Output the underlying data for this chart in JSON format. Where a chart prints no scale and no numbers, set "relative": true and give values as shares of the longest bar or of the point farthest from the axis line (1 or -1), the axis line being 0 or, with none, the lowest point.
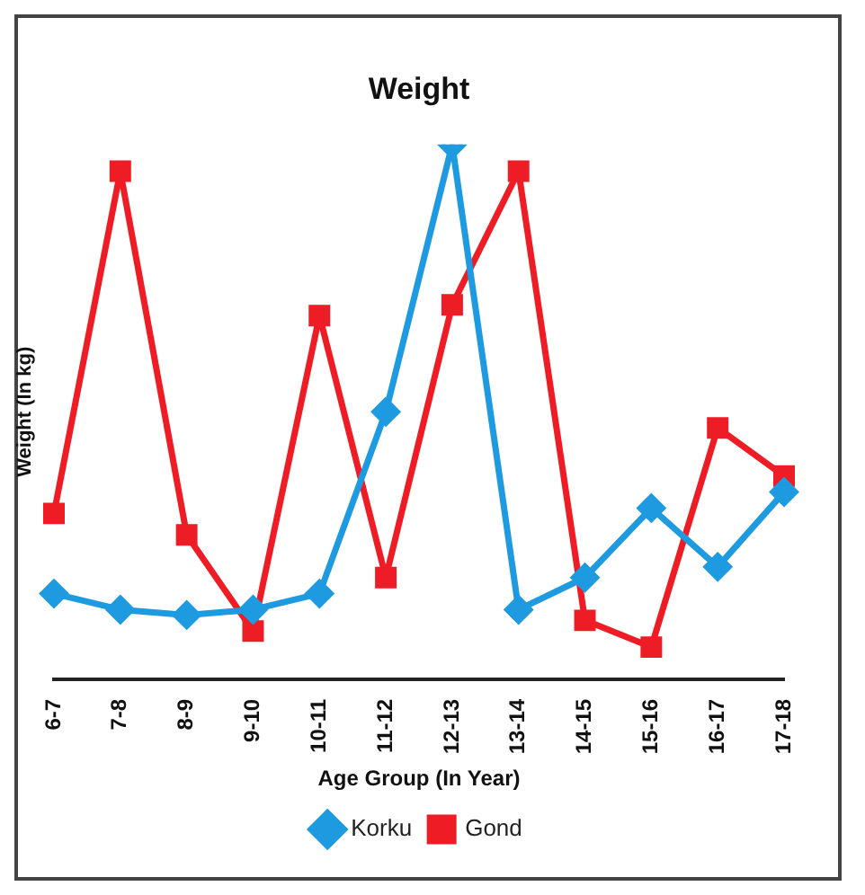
{
  "chart_data": {
    "type": "line",
    "title": "Weight",
    "xlabel": "Age Group (In Year)",
    "ylabel": "Weight (In kg)",
    "relative": true,
    "legend": "bottom",
    "grid": false,
    "categories": [
      "6-7",
      "7-8",
      "8-9",
      "9-10",
      "10-11",
      "11-12",
      "12-13",
      "13-14",
      "14-15",
      "15-16",
      "16-17",
      "17-18"
    ],
    "series": [
      {
        "name": "Korku",
        "color": "#1e9be0",
        "marker": "diamond",
        "values": [
          0.16,
          0.13,
          0.12,
          0.13,
          0.16,
          0.5,
          1,
          0.13,
          0.19,
          0.32,
          0.21,
          0.35
        ]
      },
      {
        "name": "Gond",
        "color": "#ee1c24",
        "marker": "square",
        "values": [
          0.31,
          0.95,
          0.27,
          0.09,
          0.68,
          0.19,
          0.7,
          0.95,
          0.11,
          0.06,
          0.47,
          0.38
        ]
      }
    ]
  }
}
